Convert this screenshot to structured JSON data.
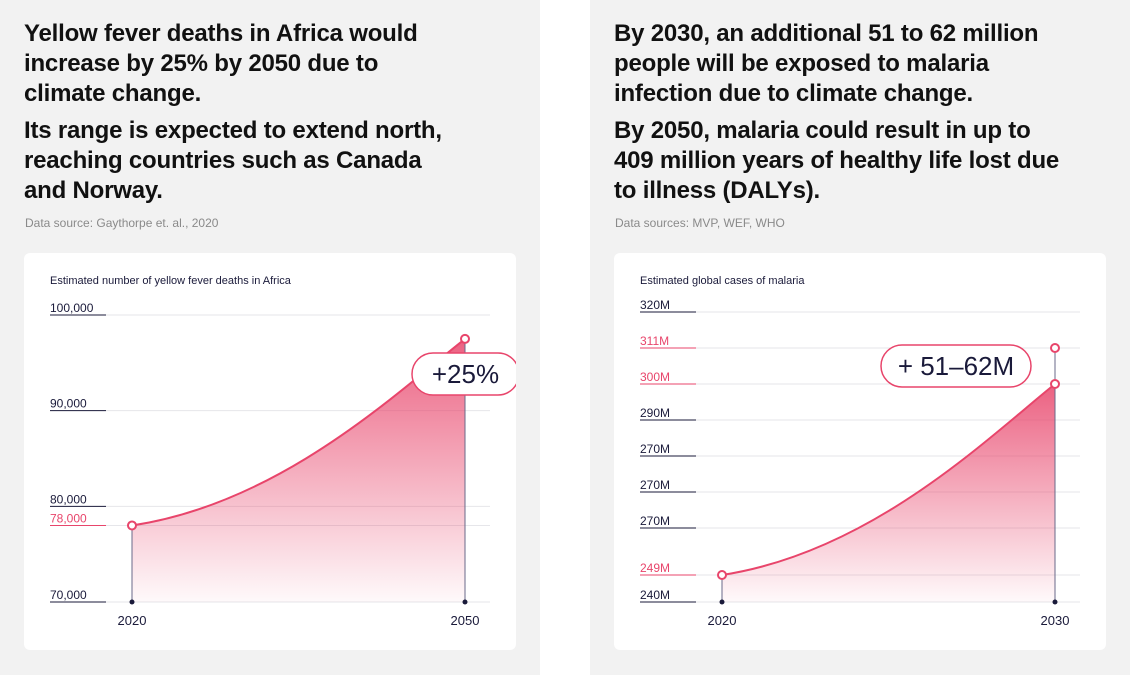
{
  "colors": {
    "accent": "#e8456b",
    "axis_text": "#1a1a3a",
    "grid": "#e6e6ea",
    "source_text": "#8a8a8a",
    "panel_bg": "#f2f2f2"
  },
  "left": {
    "headline1": [
      "Yellow fever deaths in Africa would",
      "increase by 25% by 2050 due to",
      "climate change."
    ],
    "headline2": [
      "Its range is expected to extend north,",
      "reaching countries such as Canada",
      "and Norway."
    ],
    "source": "Data source: Gaythorpe et. al., 2020"
  },
  "right": {
    "headline1": [
      "By 2030, an additional 51 to 62 million",
      "people will be exposed to malaria",
      "infection due to climate change."
    ],
    "headline2": [
      "By 2050, malaria could result in up to",
      "409 million years of healthy life lost due",
      "to illness (DALYs)."
    ],
    "source": "Data sources: MVP, WEF, WHO"
  },
  "chart_data": [
    {
      "type": "area",
      "title": "Estimated number of yellow fever deaths in Africa",
      "x": [
        "2020",
        "2050"
      ],
      "y": [
        78000,
        97500
      ],
      "ylim": [
        70000,
        100000
      ],
      "yticks": [
        {
          "value": 100000,
          "label": "100,000",
          "highlight": false
        },
        {
          "value": 90000,
          "label": "90,000",
          "highlight": false
        },
        {
          "value": 80000,
          "label": "80,000",
          "highlight": false
        },
        {
          "value": 78000,
          "label": "78,000",
          "highlight": true
        },
        {
          "value": 70000,
          "label": "70,000",
          "highlight": false
        }
      ],
      "callout": "+25%",
      "grid": true
    },
    {
      "type": "area",
      "title": "Estimated global cases of malaria",
      "x": [
        "2020",
        "2030"
      ],
      "y": [
        249,
        300
      ],
      "upper_value": 311,
      "yticks": [
        {
          "label": "320M",
          "highlight": false
        },
        {
          "label": "311M",
          "highlight": true
        },
        {
          "label": "300M",
          "highlight": true
        },
        {
          "label": "290M",
          "highlight": false
        },
        {
          "label": "270M",
          "highlight": false
        },
        {
          "label": "270M",
          "highlight": false
        },
        {
          "label": "270M",
          "highlight": false
        },
        {
          "label": "249M",
          "highlight": true
        },
        {
          "label": "240M",
          "highlight": false
        }
      ],
      "callout": "+ 51–62M",
      "grid": true
    }
  ]
}
